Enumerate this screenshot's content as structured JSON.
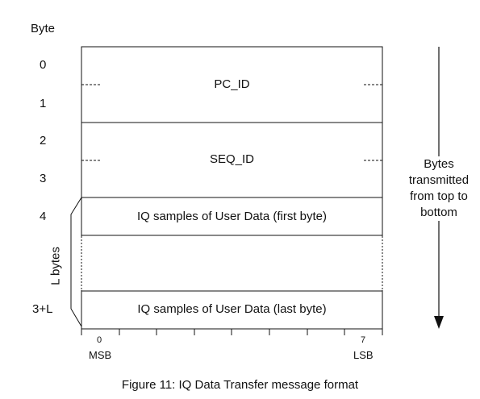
{
  "header": {
    "byte_label": "Byte"
  },
  "rows": [
    "0",
    "1",
    "2",
    "3",
    "4",
    "3+L"
  ],
  "fields": {
    "pc_id": "PC_ID",
    "seq_id": "SEQ_ID",
    "iq_first": "IQ samples of User Data (first byte)",
    "iq_last": "IQ samples of User Data (last byte)"
  },
  "brace_label": "L bytes",
  "bit_ruler": {
    "first_bit": "0",
    "last_bit": "7",
    "msb": "MSB",
    "lsb": "LSB"
  },
  "arrow_label": "Bytes transmitted from top to bottom",
  "caption": "Figure 11: IQ Data Transfer message format"
}
